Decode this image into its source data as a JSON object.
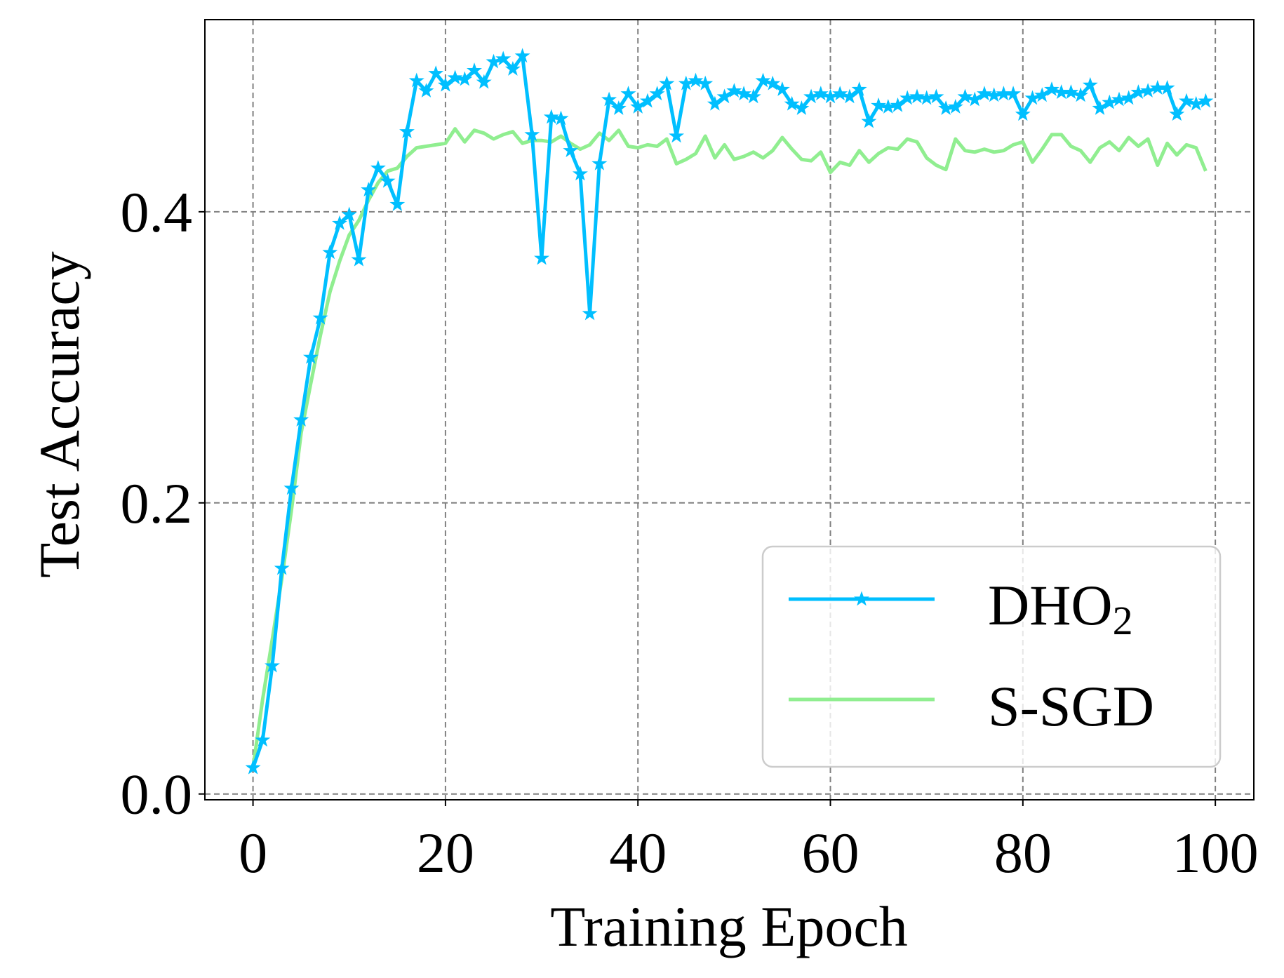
{
  "chart_data": {
    "type": "line",
    "title": "",
    "xlabel": "Training Epoch",
    "ylabel": "Test Accuracy",
    "xlim": [
      -5,
      104
    ],
    "ylim": [
      -0.004,
      0.532
    ],
    "xticks": [
      0,
      20,
      40,
      60,
      80,
      100
    ],
    "xtick_labels": [
      "0",
      "20",
      "40",
      "60",
      "80",
      "100"
    ],
    "yticks": [
      0.0,
      0.2,
      0.4
    ],
    "ytick_labels": [
      "0.0",
      "0.2",
      "0.4"
    ],
    "grid": true,
    "legend_position": "lower-right",
    "series": [
      {
        "name": "DHO",
        "name_subscript": "2",
        "color": "#00bfff",
        "marker": "star",
        "values": [
          0.018,
          0.037,
          0.088,
          0.155,
          0.21,
          0.257,
          0.3,
          0.327,
          0.372,
          0.392,
          0.398,
          0.367,
          0.415,
          0.43,
          0.421,
          0.405,
          0.455,
          0.49,
          0.483,
          0.495,
          0.487,
          0.492,
          0.491,
          0.497,
          0.489,
          0.503,
          0.505,
          0.498,
          0.507,
          0.453,
          0.368,
          0.465,
          0.464,
          0.442,
          0.426,
          0.33,
          0.433,
          0.477,
          0.471,
          0.481,
          0.472,
          0.476,
          0.481,
          0.488,
          0.452,
          0.488,
          0.49,
          0.488,
          0.474,
          0.479,
          0.483,
          0.481,
          0.479,
          0.49,
          0.488,
          0.484,
          0.474,
          0.471,
          0.479,
          0.481,
          0.479,
          0.481,
          0.479,
          0.484,
          0.462,
          0.473,
          0.472,
          0.473,
          0.478,
          0.479,
          0.478,
          0.479,
          0.471,
          0.472,
          0.479,
          0.477,
          0.481,
          0.48,
          0.481,
          0.481,
          0.467,
          0.478,
          0.48,
          0.484,
          0.482,
          0.482,
          0.48,
          0.487,
          0.471,
          0.475,
          0.477,
          0.478,
          0.482,
          0.483,
          0.485,
          0.485,
          0.467,
          0.476,
          0.474,
          0.476
        ]
      },
      {
        "name": "S-SGD",
        "color": "#90ee90",
        "marker": "none",
        "values": [
          0.018,
          0.065,
          0.106,
          0.148,
          0.195,
          0.248,
          0.282,
          0.315,
          0.345,
          0.366,
          0.384,
          0.394,
          0.408,
          0.42,
          0.428,
          0.43,
          0.438,
          0.444,
          0.445,
          0.446,
          0.447,
          0.457,
          0.448,
          0.456,
          0.454,
          0.45,
          0.453,
          0.455,
          0.447,
          0.449,
          0.449,
          0.448,
          0.452,
          0.447,
          0.443,
          0.446,
          0.454,
          0.449,
          0.456,
          0.445,
          0.444,
          0.446,
          0.445,
          0.45,
          0.433,
          0.436,
          0.44,
          0.452,
          0.437,
          0.446,
          0.436,
          0.438,
          0.441,
          0.437,
          0.442,
          0.451,
          0.443,
          0.436,
          0.435,
          0.441,
          0.427,
          0.434,
          0.432,
          0.442,
          0.434,
          0.44,
          0.444,
          0.443,
          0.45,
          0.448,
          0.437,
          0.432,
          0.429,
          0.45,
          0.442,
          0.441,
          0.443,
          0.441,
          0.442,
          0.446,
          0.448,
          0.434,
          0.443,
          0.453,
          0.453,
          0.445,
          0.442,
          0.434,
          0.444,
          0.448,
          0.442,
          0.451,
          0.445,
          0.45,
          0.432,
          0.447,
          0.439,
          0.446,
          0.444,
          0.428
        ]
      }
    ]
  }
}
